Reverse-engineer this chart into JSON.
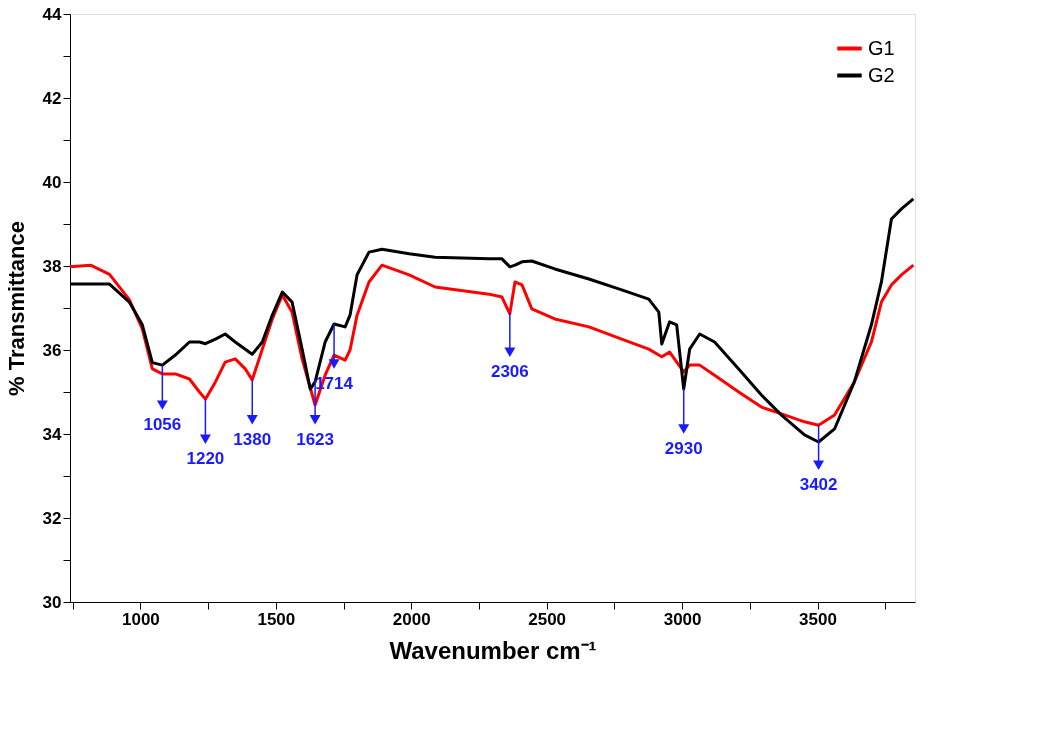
{
  "chart_data": {
    "type": "line",
    "xlabel": "Wavenumber cm⁻¹",
    "ylabel": "% Transmittance",
    "xlim": [
      740,
      3860
    ],
    "ylim": [
      30,
      44
    ],
    "xticks": [
      {
        "value": 750,
        "label": null
      },
      1000,
      {
        "value": 1250,
        "label": null
      },
      1500,
      {
        "value": 1750,
        "label": null
      },
      2000,
      {
        "value": 2250,
        "label": null
      },
      2500,
      {
        "value": 2750,
        "label": null
      },
      3000,
      {
        "value": 3250,
        "label": null
      },
      3500,
      {
        "value": 3750,
        "label": null
      }
    ],
    "yticks": [
      30,
      {
        "value": 31,
        "label": null
      },
      32,
      {
        "value": 33,
        "label": null
      },
      34,
      {
        "value": 35,
        "label": null
      },
      36,
      {
        "value": 37,
        "label": null
      },
      38,
      {
        "value": 39,
        "label": null
      },
      40,
      {
        "value": 41,
        "label": null
      },
      42,
      {
        "value": 43,
        "label": null
      },
      44
    ],
    "grid": false,
    "legend": "top right",
    "marker": "none",
    "line_style": "solid",
    "series": [
      {
        "name": "G1",
        "color": "#ff0000",
        "x": [
          740,
          816,
          886,
          959,
          1007,
          1044,
          1081,
          1129,
          1181,
          1218,
          1240,
          1277,
          1313,
          1350,
          1387,
          1413,
          1450,
          1487,
          1524,
          1560,
          1597,
          1645,
          1682,
          1715,
          1756,
          1774,
          1800,
          1844,
          1892,
          1992,
          2088,
          2287,
          2335,
          2364,
          2383,
          2409,
          2445,
          2530,
          2656,
          2777,
          2877,
          2914,
          2925,
          2954,
          3006,
          3028,
          3065,
          3120,
          3209,
          3293,
          3367,
          3452,
          3504,
          3563,
          3636,
          3699,
          3736,
          3773,
          3810,
          3854
        ],
        "values": [
          37.98,
          38.02,
          37.8,
          37.2,
          36.5,
          35.55,
          35.43,
          35.43,
          35.31,
          35.0,
          34.83,
          35.24,
          35.71,
          35.79,
          35.55,
          35.29,
          36.02,
          36.74,
          37.31,
          36.9,
          35.79,
          34.69,
          35.4,
          35.88,
          35.76,
          36.0,
          36.83,
          37.62,
          38.02,
          37.79,
          37.5,
          37.33,
          37.26,
          36.86,
          37.62,
          37.55,
          36.98,
          36.74,
          36.55,
          36.26,
          36.02,
          35.88,
          35.84,
          35.95,
          35.48,
          35.64,
          35.64,
          35.4,
          35.0,
          34.64,
          34.48,
          34.29,
          34.21,
          34.45,
          35.24,
          36.19,
          37.14,
          37.55,
          37.79,
          38.02
        ]
      },
      {
        "name": "G2",
        "color": "#000000",
        "x": [
          740,
          886,
          959,
          1007,
          1044,
          1081,
          1129,
          1181,
          1218,
          1240,
          1277,
          1313,
          1350,
          1387,
          1413,
          1450,
          1487,
          1524,
          1560,
          1597,
          1627,
          1645,
          1682,
          1715,
          1756,
          1774,
          1800,
          1844,
          1892,
          1992,
          2088,
          2287,
          2335,
          2364,
          2383,
          2409,
          2445,
          2530,
          2656,
          2777,
          2877,
          2914,
          2925,
          2954,
          2980,
          3006,
          3028,
          3065,
          3120,
          3209,
          3293,
          3367,
          3452,
          3504,
          3563,
          3636,
          3699,
          3736,
          3773,
          3810,
          3854
        ],
        "values": [
          37.57,
          37.57,
          37.14,
          36.6,
          35.7,
          35.64,
          35.88,
          36.19,
          36.19,
          36.15,
          36.26,
          36.38,
          36.19,
          36.02,
          35.9,
          36.19,
          36.83,
          37.38,
          37.14,
          36.02,
          35.07,
          35.24,
          36.19,
          36.62,
          36.55,
          36.83,
          37.79,
          38.33,
          38.4,
          38.29,
          38.21,
          38.17,
          38.17,
          37.98,
          38.02,
          38.1,
          38.12,
          37.93,
          37.69,
          37.43,
          37.21,
          36.9,
          36.14,
          36.67,
          36.6,
          35.07,
          36.02,
          36.38,
          36.19,
          35.55,
          34.93,
          34.45,
          33.98,
          33.81,
          34.12,
          35.24,
          36.6,
          37.62,
          39.12,
          39.36,
          39.6
        ]
      }
    ],
    "annotations": [
      {
        "text": "1056",
        "x": 1081,
        "y": 35.64
      },
      {
        "text": "1220",
        "x": 1240,
        "y": 34.83
      },
      {
        "text": "1380",
        "x": 1413,
        "y": 35.29
      },
      {
        "text": "1623",
        "x": 1645,
        "y": 35.29
      },
      {
        "text": "1714",
        "x": 1715,
        "y": 36.62
      },
      {
        "text": "2306",
        "x": 2364,
        "y": 36.9
      },
      {
        "text": "2930",
        "x": 3006,
        "y": 35.07
      },
      {
        "text": "3402",
        "x": 3504,
        "y": 34.21
      }
    ]
  }
}
